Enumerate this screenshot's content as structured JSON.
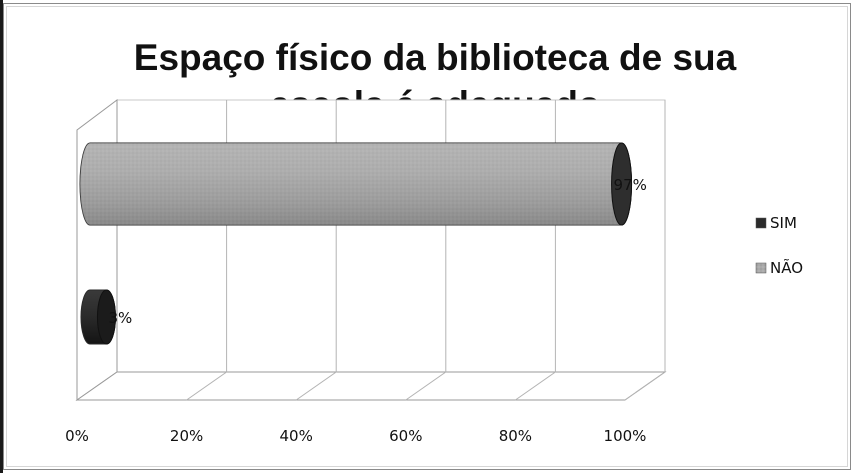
{
  "chart_data": {
    "type": "bar",
    "orientation": "horizontal",
    "style": "3d-cylinder",
    "title_lines": [
      "Espaço físico da biblioteca de sua",
      "escola é adequado"
    ],
    "x_ticks": [
      "0%",
      "20%",
      "40%",
      "60%",
      "80%",
      "100%"
    ],
    "xlim": [
      0,
      100
    ],
    "grid": true,
    "legend_position": "right",
    "series": [
      {
        "name": "SIM",
        "value": 3,
        "label": "3%",
        "color": "#2b2b2b"
      },
      {
        "name": "NÃO",
        "value": 97,
        "label": "97%",
        "color": "#a9a9a9"
      }
    ],
    "legend": [
      {
        "name": "SIM",
        "color": "#2b2b2b"
      },
      {
        "name": "NÃO",
        "color": "#a9a9a9"
      }
    ]
  }
}
